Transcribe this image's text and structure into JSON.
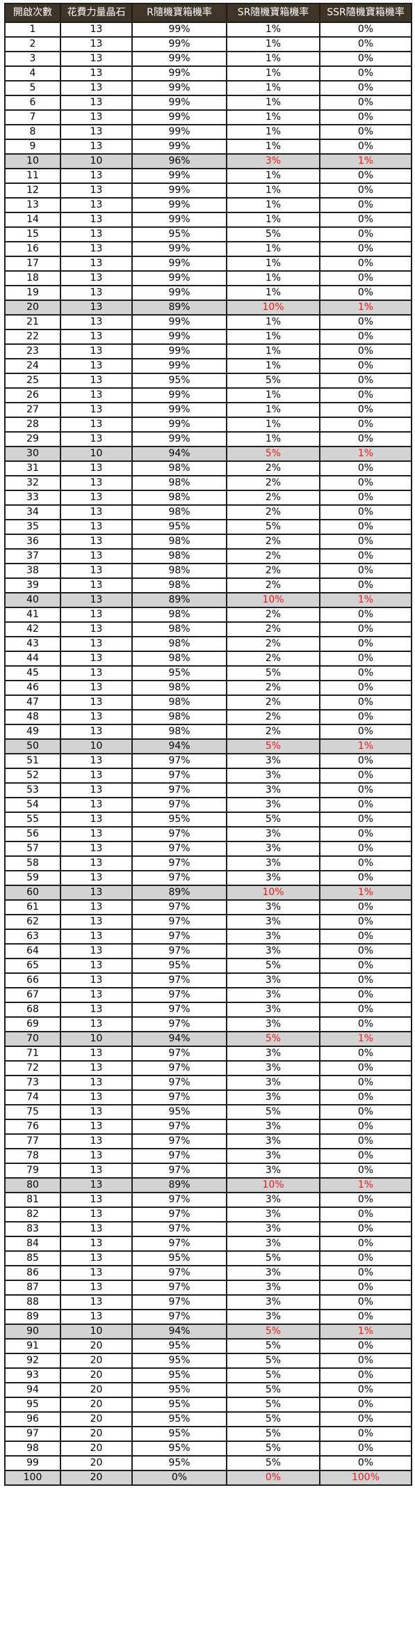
{
  "table": {
    "headers": [
      "開啟次數",
      "花費力量晶石",
      "R隨機寶箱機率",
      "SR隨機寶箱機率",
      "SSR隨機寶箱機率"
    ],
    "rows": [
      [
        "1",
        "13",
        "99%",
        "1%",
        "0%"
      ],
      [
        "2",
        "13",
        "99%",
        "1%",
        "0%"
      ],
      [
        "3",
        "13",
        "99%",
        "1%",
        "0%"
      ],
      [
        "4",
        "13",
        "99%",
        "1%",
        "0%"
      ],
      [
        "5",
        "13",
        "99%",
        "1%",
        "0%"
      ],
      [
        "6",
        "13",
        "99%",
        "1%",
        "0%"
      ],
      [
        "7",
        "13",
        "99%",
        "1%",
        "0%"
      ],
      [
        "8",
        "13",
        "99%",
        "1%",
        "0%"
      ],
      [
        "9",
        "13",
        "99%",
        "1%",
        "0%"
      ],
      [
        "10",
        "10",
        "96%",
        "3%",
        "1%"
      ],
      [
        "11",
        "13",
        "99%",
        "1%",
        "0%"
      ],
      [
        "12",
        "13",
        "99%",
        "1%",
        "0%"
      ],
      [
        "13",
        "13",
        "99%",
        "1%",
        "0%"
      ],
      [
        "14",
        "13",
        "99%",
        "1%",
        "0%"
      ],
      [
        "15",
        "13",
        "95%",
        "5%",
        "0%"
      ],
      [
        "16",
        "13",
        "99%",
        "1%",
        "0%"
      ],
      [
        "17",
        "13",
        "99%",
        "1%",
        "0%"
      ],
      [
        "18",
        "13",
        "99%",
        "1%",
        "0%"
      ],
      [
        "19",
        "13",
        "99%",
        "1%",
        "0%"
      ],
      [
        "20",
        "13",
        "89%",
        "10%",
        "1%"
      ],
      [
        "21",
        "13",
        "99%",
        "1%",
        "0%"
      ],
      [
        "22",
        "13",
        "99%",
        "1%",
        "0%"
      ],
      [
        "23",
        "13",
        "99%",
        "1%",
        "0%"
      ],
      [
        "24",
        "13",
        "99%",
        "1%",
        "0%"
      ],
      [
        "25",
        "13",
        "95%",
        "5%",
        "0%"
      ],
      [
        "26",
        "13",
        "99%",
        "1%",
        "0%"
      ],
      [
        "27",
        "13",
        "99%",
        "1%",
        "0%"
      ],
      [
        "28",
        "13",
        "99%",
        "1%",
        "0%"
      ],
      [
        "29",
        "13",
        "99%",
        "1%",
        "0%"
      ],
      [
        "30",
        "10",
        "94%",
        "5%",
        "1%"
      ],
      [
        "31",
        "13",
        "98%",
        "2%",
        "0%"
      ],
      [
        "32",
        "13",
        "98%",
        "2%",
        "0%"
      ],
      [
        "33",
        "13",
        "98%",
        "2%",
        "0%"
      ],
      [
        "34",
        "13",
        "98%",
        "2%",
        "0%"
      ],
      [
        "35",
        "13",
        "95%",
        "5%",
        "0%"
      ],
      [
        "36",
        "13",
        "98%",
        "2%",
        "0%"
      ],
      [
        "37",
        "13",
        "98%",
        "2%",
        "0%"
      ],
      [
        "38",
        "13",
        "98%",
        "2%",
        "0%"
      ],
      [
        "39",
        "13",
        "98%",
        "2%",
        "0%"
      ],
      [
        "40",
        "13",
        "89%",
        "10%",
        "1%"
      ],
      [
        "41",
        "13",
        "98%",
        "2%",
        "0%"
      ],
      [
        "42",
        "13",
        "98%",
        "2%",
        "0%"
      ],
      [
        "43",
        "13",
        "98%",
        "2%",
        "0%"
      ],
      [
        "44",
        "13",
        "98%",
        "2%",
        "0%"
      ],
      [
        "45",
        "13",
        "95%",
        "5%",
        "0%"
      ],
      [
        "46",
        "13",
        "98%",
        "2%",
        "0%"
      ],
      [
        "47",
        "13",
        "98%",
        "2%",
        "0%"
      ],
      [
        "48",
        "13",
        "98%",
        "2%",
        "0%"
      ],
      [
        "49",
        "13",
        "98%",
        "2%",
        "0%"
      ],
      [
        "50",
        "10",
        "94%",
        "5%",
        "1%"
      ],
      [
        "51",
        "13",
        "97%",
        "3%",
        "0%"
      ],
      [
        "52",
        "13",
        "97%",
        "3%",
        "0%"
      ],
      [
        "53",
        "13",
        "97%",
        "3%",
        "0%"
      ],
      [
        "54",
        "13",
        "97%",
        "3%",
        "0%"
      ],
      [
        "55",
        "13",
        "95%",
        "5%",
        "0%"
      ],
      [
        "56",
        "13",
        "97%",
        "3%",
        "0%"
      ],
      [
        "57",
        "13",
        "97%",
        "3%",
        "0%"
      ],
      [
        "58",
        "13",
        "97%",
        "3%",
        "0%"
      ],
      [
        "59",
        "13",
        "97%",
        "3%",
        "0%"
      ],
      [
        "60",
        "13",
        "89%",
        "10%",
        "1%"
      ],
      [
        "61",
        "13",
        "97%",
        "3%",
        "0%"
      ],
      [
        "62",
        "13",
        "97%",
        "3%",
        "0%"
      ],
      [
        "63",
        "13",
        "97%",
        "3%",
        "0%"
      ],
      [
        "64",
        "13",
        "97%",
        "3%",
        "0%"
      ],
      [
        "65",
        "13",
        "95%",
        "5%",
        "0%"
      ],
      [
        "66",
        "13",
        "97%",
        "3%",
        "0%"
      ],
      [
        "67",
        "13",
        "97%",
        "3%",
        "0%"
      ],
      [
        "68",
        "13",
        "97%",
        "3%",
        "0%"
      ],
      [
        "69",
        "13",
        "97%",
        "3%",
        "0%"
      ],
      [
        "70",
        "10",
        "94%",
        "5%",
        "1%"
      ],
      [
        "71",
        "13",
        "97%",
        "3%",
        "0%"
      ],
      [
        "72",
        "13",
        "97%",
        "3%",
        "0%"
      ],
      [
        "73",
        "13",
        "97%",
        "3%",
        "0%"
      ],
      [
        "74",
        "13",
        "97%",
        "3%",
        "0%"
      ],
      [
        "75",
        "13",
        "95%",
        "5%",
        "0%"
      ],
      [
        "76",
        "13",
        "97%",
        "3%",
        "0%"
      ],
      [
        "77",
        "13",
        "97%",
        "3%",
        "0%"
      ],
      [
        "78",
        "13",
        "97%",
        "3%",
        "0%"
      ],
      [
        "79",
        "13",
        "97%",
        "3%",
        "0%"
      ],
      [
        "80",
        "13",
        "89%",
        "10%",
        "1%"
      ],
      [
        "81",
        "13",
        "97%",
        "3%",
        "0%"
      ],
      [
        "82",
        "13",
        "97%",
        "3%",
        "0%"
      ],
      [
        "83",
        "13",
        "97%",
        "3%",
        "0%"
      ],
      [
        "84",
        "13",
        "97%",
        "3%",
        "0%"
      ],
      [
        "85",
        "13",
        "95%",
        "5%",
        "0%"
      ],
      [
        "86",
        "13",
        "97%",
        "3%",
        "0%"
      ],
      [
        "87",
        "13",
        "97%",
        "3%",
        "0%"
      ],
      [
        "88",
        "13",
        "97%",
        "3%",
        "0%"
      ],
      [
        "89",
        "13",
        "97%",
        "3%",
        "0%"
      ],
      [
        "90",
        "10",
        "94%",
        "5%",
        "1%"
      ],
      [
        "91",
        "20",
        "95%",
        "5%",
        "0%"
      ],
      [
        "92",
        "20",
        "95%",
        "5%",
        "0%"
      ],
      [
        "93",
        "20",
        "95%",
        "5%",
        "0%"
      ],
      [
        "94",
        "20",
        "95%",
        "5%",
        "0%"
      ],
      [
        "95",
        "20",
        "95%",
        "5%",
        "0%"
      ],
      [
        "96",
        "20",
        "95%",
        "5%",
        "0%"
      ],
      [
        "97",
        "20",
        "95%",
        "5%",
        "0%"
      ],
      [
        "98",
        "20",
        "95%",
        "5%",
        "0%"
      ],
      [
        "99",
        "20",
        "95%",
        "5%",
        "0%"
      ],
      [
        "100",
        "20",
        "0%",
        "0%",
        "100%"
      ]
    ]
  },
  "colors": {
    "header_bg": "#3f3526",
    "header_text": "#ffffff",
    "highlight_row_bg": "#d3d3d3",
    "highlight_text": "#e81b1b",
    "border": "#1f1f1f"
  }
}
